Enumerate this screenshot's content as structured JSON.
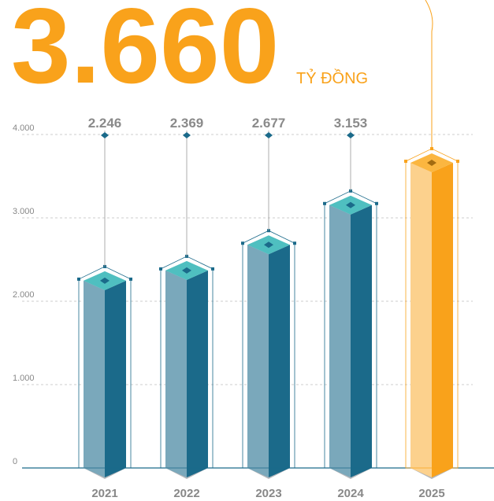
{
  "chart_data": {
    "type": "bar",
    "unit": "TỶ ĐỒNG",
    "categories": [
      "2021",
      "2022",
      "2023",
      "2024",
      "2025"
    ],
    "values": [
      2246,
      2369,
      2677,
      3153,
      3660
    ],
    "value_labels": [
      "2.246",
      "2.369",
      "2.677",
      "3.153",
      "3.660"
    ],
    "colors": [
      "#1b6a8a",
      "#1b6a8a",
      "#1b6a8a",
      "#1b6a8a",
      "#f9a21b"
    ],
    "highlight": 4,
    "ylim": [
      0,
      4000
    ],
    "yticks": [
      0,
      {
        "value": 1000,
        "label": "1.000"
      },
      {
        "value": 2000,
        "label": "2.000"
      },
      {
        "value": 3000,
        "label": "3.000"
      },
      {
        "value": 4000,
        "label": "4.000"
      }
    ],
    "grid": true
  }
}
